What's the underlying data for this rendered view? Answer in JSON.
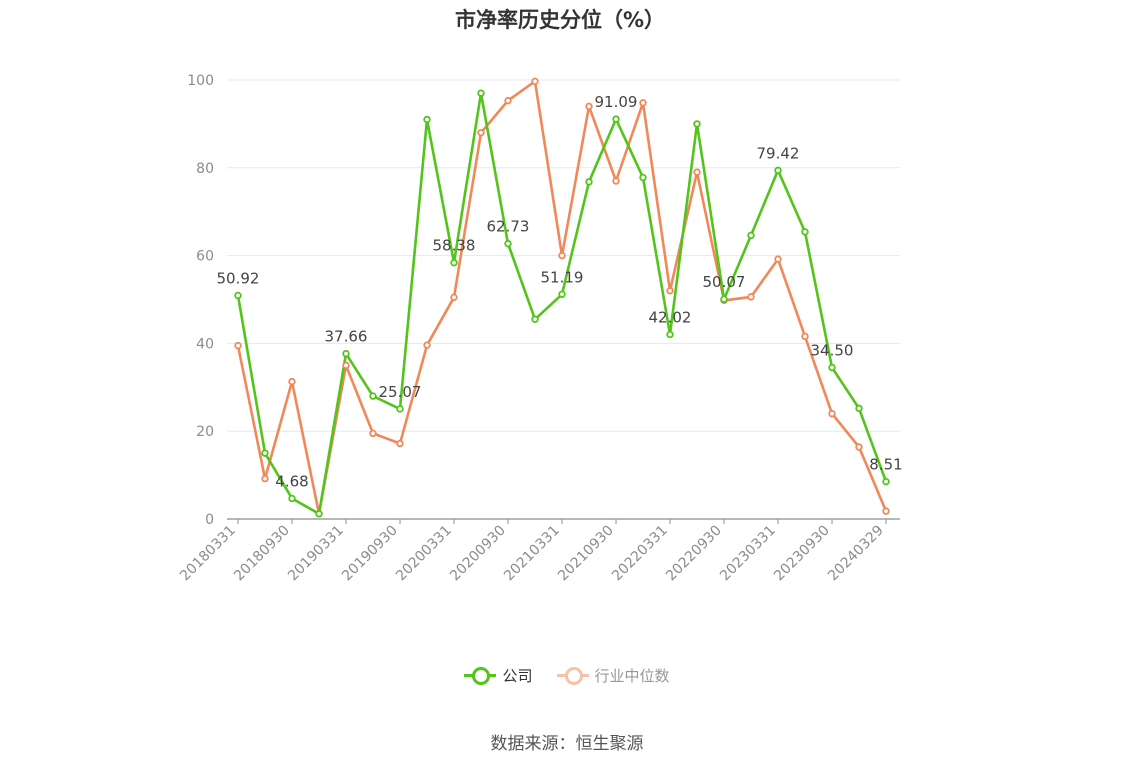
{
  "title": "市净率历史分位（%）",
  "source": "数据来源：恒生聚源",
  "legend": {
    "company": "公司",
    "industry": "行业中位数"
  },
  "colors": {
    "company": "#52c41a",
    "industry": "#f0885a",
    "industry_legend_inactive": "#f7c1a8",
    "grid": "#e6e8ef",
    "axis": "#8c8c8c"
  },
  "chart_data": {
    "type": "line",
    "title": "市净率历史分位（%）",
    "xlabel": "",
    "ylabel": "",
    "ylim": [
      0,
      100
    ],
    "yticks": [
      0,
      20,
      40,
      60,
      80,
      100
    ],
    "grid": true,
    "legend_position": "bottom",
    "x": [
      "20180331",
      "20180630",
      "20180930",
      "20181231",
      "20190331",
      "20190630",
      "20190930",
      "20191231",
      "20200331",
      "20200630",
      "20200930",
      "20201231",
      "20210331",
      "20210630",
      "20210930",
      "20211231",
      "20220331",
      "20220630",
      "20220930",
      "20221231",
      "20230331",
      "20230630",
      "20230930",
      "20231231",
      "20240329"
    ],
    "x_tick_labels": [
      "20180331",
      "20180930",
      "20190331",
      "20190930",
      "20200331",
      "20200930",
      "20210331",
      "20210930",
      "20220331",
      "20220930",
      "20230331",
      "20230930",
      "20240329"
    ],
    "series": [
      {
        "name": "公司",
        "values": [
          50.92,
          15.0,
          4.68,
          1.2,
          37.66,
          28.0,
          25.07,
          91.0,
          58.38,
          97.0,
          62.73,
          45.5,
          51.19,
          76.8,
          91.09,
          77.8,
          42.02,
          90.0,
          50.07,
          64.6,
          79.42,
          65.4,
          34.5,
          25.2,
          8.51
        ],
        "labels": {
          "0": "50.92",
          "2": "4.68",
          "4": "37.66",
          "6": "25.07",
          "8": "58.38",
          "10": "62.73",
          "12": "51.19",
          "14": "91.09",
          "16": "42.02",
          "18": "50.07",
          "20": "79.42",
          "22": "34.50",
          "24": "8.51"
        }
      },
      {
        "name": "行业中位数",
        "values": [
          39.5,
          9.2,
          31.3,
          1.2,
          35.0,
          19.5,
          17.2,
          39.6,
          50.5,
          88.0,
          95.3,
          99.7,
          60.0,
          94.0,
          77.0,
          94.8,
          52.0,
          79.0,
          49.8,
          50.6,
          59.2,
          41.6,
          24.0,
          16.4,
          1.8
        ]
      }
    ]
  }
}
